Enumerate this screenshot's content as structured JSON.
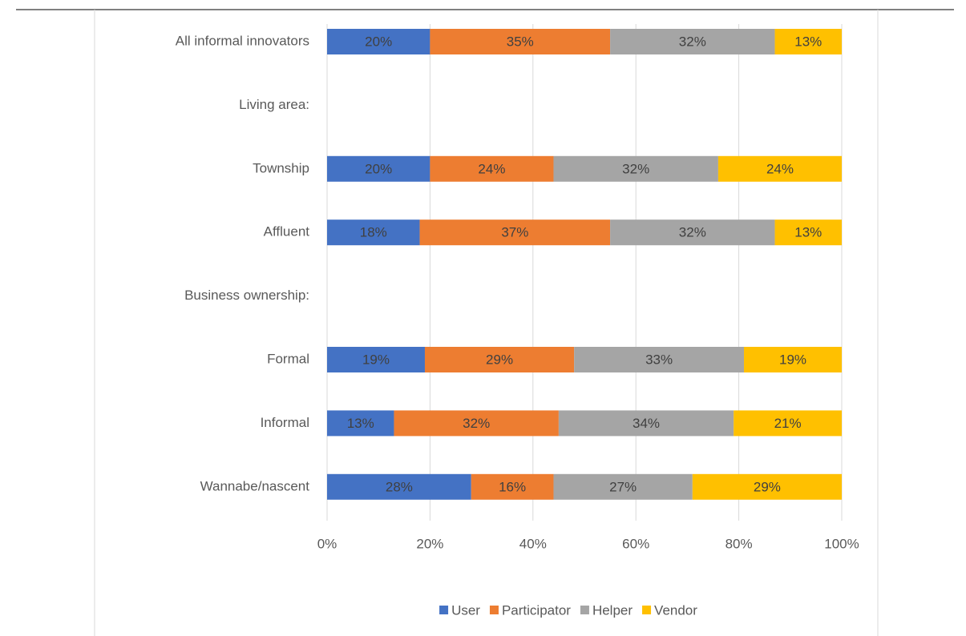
{
  "chart_data": {
    "type": "stacked-bar-horizontal",
    "categories": [
      "All informal innovators",
      "Living area:",
      "Township",
      "Affluent",
      "Business ownership:",
      "Formal",
      "Informal",
      "Wannabe/nascent"
    ],
    "series": [
      {
        "name": "User",
        "color": "#4472c4",
        "values": [
          20,
          null,
          20,
          18,
          null,
          19,
          13,
          28
        ],
        "value_labels": [
          "20%",
          null,
          "20%",
          "18%",
          null,
          "19%",
          "13%",
          "28%"
        ]
      },
      {
        "name": "Participator",
        "color": "#ed7d31",
        "values": [
          35,
          null,
          24,
          37,
          null,
          29,
          32,
          16
        ],
        "value_labels": [
          "35%",
          null,
          "24%",
          "37%",
          null,
          "29%",
          "32%",
          "16%"
        ]
      },
      {
        "name": "Helper",
        "color": "#a5a5a5",
        "values": [
          32,
          null,
          32,
          32,
          null,
          33,
          34,
          27
        ],
        "value_labels": [
          "32%",
          null,
          "32%",
          "32%",
          null,
          "33%",
          "34%",
          "27%"
        ]
      },
      {
        "name": "Vendor",
        "color": "#ffc000",
        "values": [
          13,
          null,
          24,
          13,
          null,
          19,
          21,
          29
        ],
        "value_labels": [
          "13%",
          null,
          "24%",
          "13%",
          null,
          "19%",
          "21%",
          "29%"
        ]
      }
    ],
    "xlim": [
      0,
      100
    ],
    "xticks": [
      {
        "value": 0,
        "label": "0%"
      },
      {
        "value": 20,
        "label": "20%"
      },
      {
        "value": 40,
        "label": "40%"
      },
      {
        "value": 60,
        "label": "60%"
      },
      {
        "value": 80,
        "label": "80%"
      },
      {
        "value": 100,
        "label": "100%"
      }
    ],
    "grid": true,
    "legend": "bottom"
  }
}
